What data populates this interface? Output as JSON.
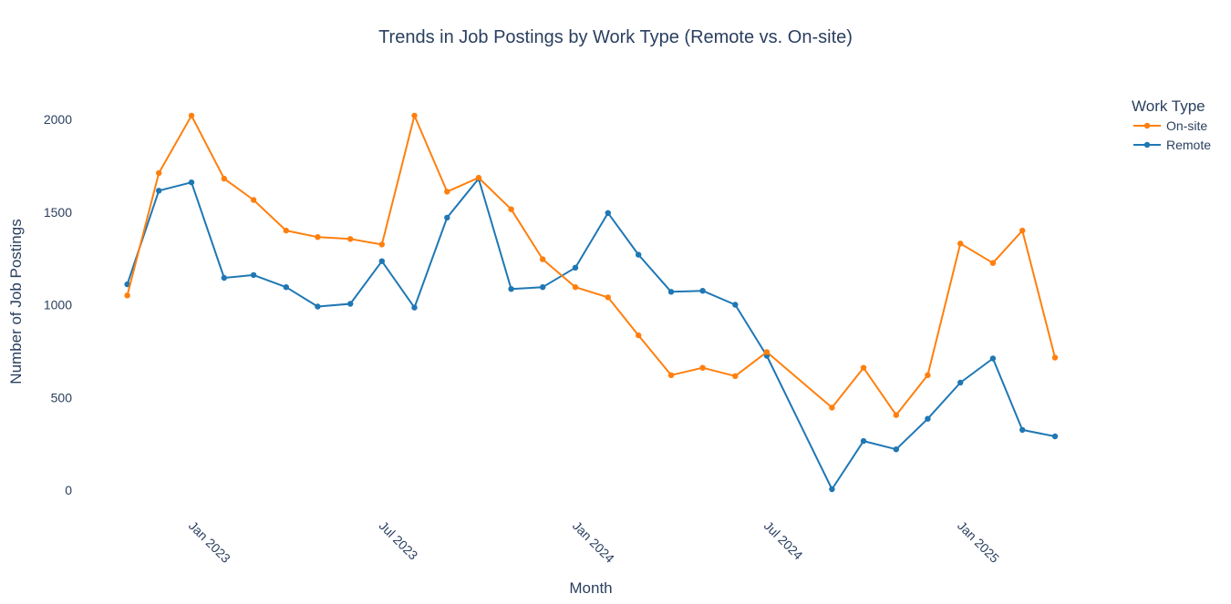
{
  "chart_data": {
    "type": "line",
    "title": "Trends in Job Postings by Work Type (Remote vs. On-site)",
    "xlabel": "Month",
    "ylabel": "Number of Job Postings",
    "x": [
      "2022-11",
      "2022-12",
      "2023-01",
      "2023-02",
      "2023-03",
      "2023-04",
      "2023-05",
      "2023-06",
      "2023-07",
      "2023-08",
      "2023-09",
      "2023-10",
      "2023-11",
      "2023-12",
      "2024-01",
      "2024-02",
      "2024-03",
      "2024-04",
      "2024-05",
      "2024-06",
      "2024-07",
      "2024-09",
      "2024-10",
      "2024-11",
      "2024-12",
      "2025-01",
      "2025-02",
      "2025-03",
      "2025-04"
    ],
    "x_tick_labels": [
      "Jan 2023",
      "Jul 2023",
      "Jan 2024",
      "Jul 2024",
      "Jan 2025"
    ],
    "y_ticks": [
      0,
      500,
      1000,
      1500,
      2000
    ],
    "ylim": [
      -80,
      2250
    ],
    "legend": {
      "title": "Work Type",
      "placement": "top-right"
    },
    "grid": false,
    "series": [
      {
        "name": "On-site",
        "color": "#ff7f0e",
        "values": [
          1050,
          1710,
          2020,
          1680,
          1565,
          1400,
          1365,
          1355,
          1325,
          2020,
          1610,
          1685,
          1515,
          1245,
          1095,
          1040,
          835,
          620,
          660,
          615,
          745,
          445,
          660,
          405,
          620,
          1330,
          1225,
          1400,
          715
        ]
      },
      {
        "name": "Remote",
        "color": "#1f77b4",
        "values": [
          1110,
          1615,
          1660,
          1145,
          1160,
          1095,
          990,
          1005,
          1235,
          985,
          1470,
          1680,
          1085,
          1095,
          1200,
          1495,
          1270,
          1070,
          1075,
          1000,
          725,
          5,
          265,
          220,
          385,
          580,
          710,
          325,
          290
        ]
      }
    ]
  }
}
